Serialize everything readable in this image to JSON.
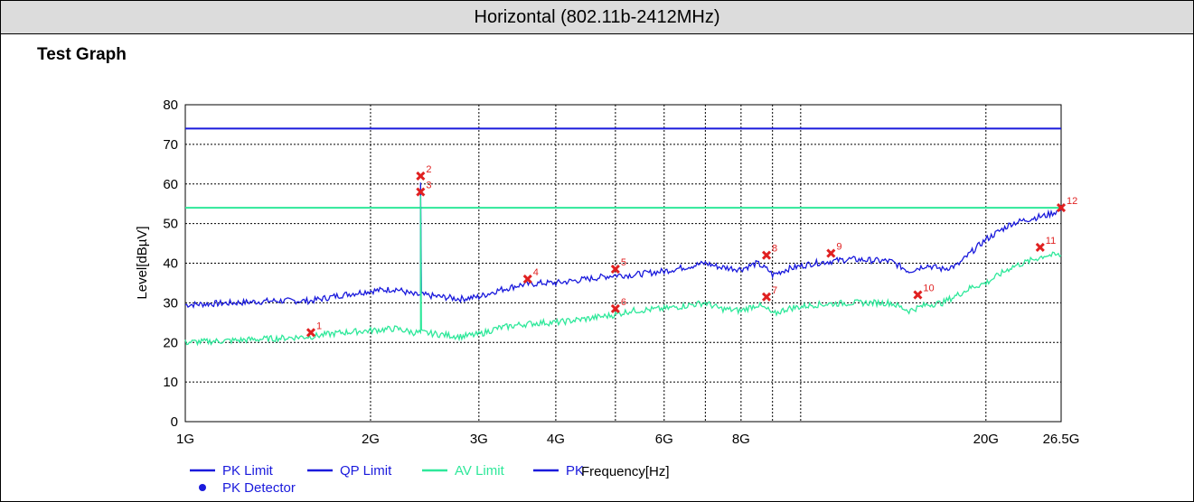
{
  "header": {
    "title": "Horizontal (802.11b-2412MHz)"
  },
  "section": {
    "title": "Test Graph"
  },
  "colors": {
    "pk_limit": "#1a1adc",
    "qp_limit": "#1a1adc",
    "av_limit": "#2ee89a",
    "pk": "#1a1adc",
    "av": "#2ee89a",
    "marker": "#e02020",
    "detector": "#1a1adc"
  },
  "chart_data": {
    "type": "line",
    "title": "",
    "xlabel": "Frequency[Hz]",
    "ylabel": "Level[dBµV]",
    "xscale": "log",
    "xlim": [
      1,
      26.5
    ],
    "ylim": [
      0,
      80
    ],
    "grid": true,
    "x_ticks": [
      {
        "value": 1,
        "label": "1G"
      },
      {
        "value": 2,
        "label": "2G"
      },
      {
        "value": 3,
        "label": "3G"
      },
      {
        "value": 4,
        "label": "4G"
      },
      {
        "value": 6,
        "label": "6G"
      },
      {
        "value": 8,
        "label": "8G"
      },
      {
        "value": 20,
        "label": "20G"
      },
      {
        "value": 26.5,
        "label": "26.5G"
      }
    ],
    "x_gridlines": [
      1,
      2,
      3,
      4,
      5,
      6,
      7,
      8,
      9,
      10,
      20,
      26.5
    ],
    "y_ticks": [
      0,
      10,
      20,
      30,
      40,
      50,
      60,
      70,
      80
    ],
    "limits": [
      {
        "name": "PK Limit",
        "value": 74
      },
      {
        "name": "AV Limit",
        "value": 54
      }
    ],
    "series": [
      {
        "name": "PK",
        "points": [
          [
            1,
            29.5
          ],
          [
            1.2,
            30
          ],
          [
            1.4,
            30.5
          ],
          [
            1.6,
            30.5
          ],
          [
            1.8,
            32
          ],
          [
            2.0,
            33
          ],
          [
            2.2,
            33.5
          ],
          [
            2.35,
            32
          ],
          [
            2.412,
            32
          ],
          [
            2.412,
            60
          ],
          [
            2.42,
            32
          ],
          [
            2.6,
            31.5
          ],
          [
            2.8,
            31
          ],
          [
            3.0,
            31.5
          ],
          [
            3.2,
            33
          ],
          [
            3.5,
            34.5
          ],
          [
            3.8,
            35
          ],
          [
            4.0,
            35
          ],
          [
            4.5,
            36
          ],
          [
            5.0,
            37
          ],
          [
            5.3,
            37
          ],
          [
            6.0,
            38
          ],
          [
            7.0,
            40
          ],
          [
            7.4,
            39
          ],
          [
            8.0,
            38.5
          ],
          [
            8.5,
            40
          ],
          [
            8.9,
            38
          ],
          [
            9.0,
            37
          ],
          [
            9.5,
            38.5
          ],
          [
            10.5,
            40
          ],
          [
            12.0,
            41
          ],
          [
            14.0,
            40.5
          ],
          [
            15.0,
            38
          ],
          [
            16.0,
            39.5
          ],
          [
            17.0,
            38.5
          ],
          [
            18.0,
            39.5
          ],
          [
            19.0,
            43
          ],
          [
            20.0,
            46
          ],
          [
            22.0,
            50
          ],
          [
            24.0,
            51.5
          ],
          [
            25.0,
            52
          ],
          [
            26.5,
            53.5
          ]
        ]
      },
      {
        "name": "AV",
        "points": [
          [
            1,
            20
          ],
          [
            1.2,
            20.5
          ],
          [
            1.4,
            21
          ],
          [
            1.6,
            21.5
          ],
          [
            1.8,
            22.5
          ],
          [
            2.0,
            23
          ],
          [
            2.2,
            23.5
          ],
          [
            2.35,
            22.5
          ],
          [
            2.412,
            22.5
          ],
          [
            2.412,
            57
          ],
          [
            2.42,
            22.5
          ],
          [
            2.6,
            22
          ],
          [
            2.8,
            21.5
          ],
          [
            3.0,
            22
          ],
          [
            3.2,
            23.5
          ],
          [
            3.5,
            24.5
          ],
          [
            3.8,
            25
          ],
          [
            4.0,
            25
          ],
          [
            4.5,
            26
          ],
          [
            5.0,
            27
          ],
          [
            5.3,
            28
          ],
          [
            6.0,
            28.5
          ],
          [
            7.0,
            30
          ],
          [
            7.4,
            28.5
          ],
          [
            8.0,
            28
          ],
          [
            8.5,
            29.5
          ],
          [
            8.9,
            28
          ],
          [
            9.0,
            27
          ],
          [
            9.5,
            28.5
          ],
          [
            10.5,
            29.5
          ],
          [
            12.0,
            30
          ],
          [
            14.0,
            30
          ],
          [
            15.0,
            28
          ],
          [
            16.0,
            29.5
          ],
          [
            17.0,
            30
          ],
          [
            18.0,
            32
          ],
          [
            19.0,
            34
          ],
          [
            20.0,
            35
          ],
          [
            22.0,
            39
          ],
          [
            24.0,
            41
          ],
          [
            25.0,
            42
          ],
          [
            26.5,
            42
          ]
        ]
      }
    ],
    "markers": [
      {
        "id": "1",
        "x": 1.6,
        "y": 22.5
      },
      {
        "id": "2",
        "x": 2.412,
        "y": 62
      },
      {
        "id": "3",
        "x": 2.412,
        "y": 58
      },
      {
        "id": "4",
        "x": 3.6,
        "y": 36
      },
      {
        "id": "5",
        "x": 5.0,
        "y": 38.5
      },
      {
        "id": "6",
        "x": 5.0,
        "y": 28.5
      },
      {
        "id": "7",
        "x": 8.8,
        "y": 31.5
      },
      {
        "id": "8",
        "x": 8.8,
        "y": 42
      },
      {
        "id": "9",
        "x": 11.2,
        "y": 42.5
      },
      {
        "id": "10",
        "x": 15.5,
        "y": 32
      },
      {
        "id": "11",
        "x": 24.5,
        "y": 44
      },
      {
        "id": "12",
        "x": 26.5,
        "y": 54
      }
    ],
    "legend": {
      "placement": "bottom",
      "items": [
        {
          "label": "PK Limit",
          "color": "#1a1adc",
          "symbol": "line"
        },
        {
          "label": "QP Limit",
          "color": "#1a1adc",
          "symbol": "line"
        },
        {
          "label": "AV Limit",
          "color": "#2ee89a",
          "symbol": "line"
        },
        {
          "label": "PK",
          "color": "#1a1adc",
          "symbol": "line"
        },
        {
          "label": "PK Detector",
          "color": "#1a1adc",
          "symbol": "dot"
        }
      ]
    }
  }
}
